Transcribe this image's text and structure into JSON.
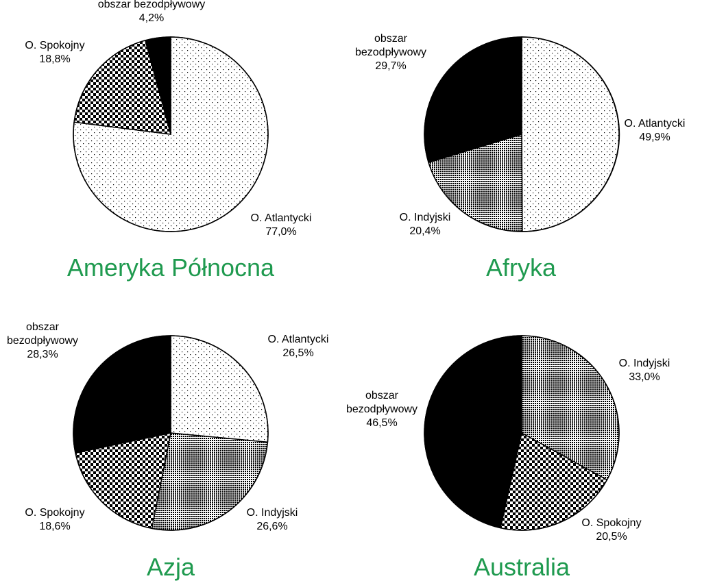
{
  "colors": {
    "title": "#1f9a4f",
    "outline": "#000000",
    "background": "#ffffff"
  },
  "fill_patterns": {
    "O. Atlantycki": "dots",
    "O. Spokojny": "checker",
    "O. Indyjski": "fine-grid",
    "obszar bezodpływowy": "solid-black"
  },
  "chart_data": [
    {
      "type": "pie",
      "title": "Ameryka Północna",
      "start": "12 o'clock, clockwise",
      "slices": [
        {
          "label": "O. Atlantycki",
          "value": 77.0,
          "value_text": "77,0%"
        },
        {
          "label": "O. Spokojny",
          "value": 18.8,
          "value_text": "18,8%"
        },
        {
          "label": "obszar bezodpływowy",
          "value": 4.2,
          "value_text": "4,2%"
        }
      ]
    },
    {
      "type": "pie",
      "title": "Afryka",
      "start": "12 o'clock, clockwise",
      "slices": [
        {
          "label": "O. Atlantycki",
          "value": 49.9,
          "value_text": "49,9%"
        },
        {
          "label": "O. Indyjski",
          "value": 20.4,
          "value_text": "20,4%"
        },
        {
          "label": "obszar bezodpływowy",
          "value": 29.7,
          "value_text": "29,7%"
        }
      ]
    },
    {
      "type": "pie",
      "title": "Azja",
      "start": "12 o'clock, clockwise",
      "slices": [
        {
          "label": "O. Atlantycki",
          "value": 26.5,
          "value_text": "26,5%"
        },
        {
          "label": "O. Indyjski",
          "value": 26.6,
          "value_text": "26,6%"
        },
        {
          "label": "O. Spokojny",
          "value": 18.6,
          "value_text": "18,6%"
        },
        {
          "label": "obszar bezodpływowy",
          "value": 28.3,
          "value_text": "28,3%"
        }
      ]
    },
    {
      "type": "pie",
      "title": "Australia",
      "start": "12 o'clock, clockwise",
      "slices": [
        {
          "label": "O. Indyjski",
          "value": 33.0,
          "value_text": "33,0%"
        },
        {
          "label": "O. Spokojny",
          "value": 20.5,
          "value_text": "20,5%"
        },
        {
          "label": "obszar bezodpływowy",
          "value": 46.5,
          "value_text": "46,5%"
        }
      ]
    }
  ]
}
